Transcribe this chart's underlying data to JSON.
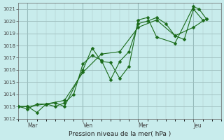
{
  "xlabel": "Pression niveau de la mer( hPa )",
  "bg_color": "#c8ecec",
  "line_color": "#1a6b1a",
  "grid_major_color": "#aacccc",
  "grid_minor_color": "#c8e8e8",
  "ylim": [
    1012,
    1021.5
  ],
  "xlim": [
    0,
    11.0
  ],
  "yticks": [
    1012,
    1013,
    1014,
    1015,
    1016,
    1017,
    1018,
    1019,
    1020,
    1021
  ],
  "xtick_labels": [
    "Mar",
    "Ven",
    "Mer",
    "Jeu"
  ],
  "xtick_positions": [
    0.5,
    3.5,
    6.5,
    9.5
  ],
  "vlines": [
    0.5,
    3.5,
    6.5,
    9.5
  ],
  "line1_x": [
    0.0,
    0.5,
    1.0,
    1.5,
    2.0,
    2.5,
    3.5,
    4.0,
    4.5,
    5.0,
    5.5,
    6.0,
    6.5,
    7.0,
    7.5,
    8.5,
    9.5,
    9.8,
    10.2
  ],
  "line1_y": [
    1013.0,
    1013.0,
    1012.5,
    1013.2,
    1013.3,
    1013.0,
    1016.0,
    1017.8,
    1016.7,
    1016.6,
    1015.3,
    1016.3,
    1020.1,
    1020.3,
    1018.7,
    1018.2,
    1021.2,
    1021.0,
    1020.2
  ],
  "line2_x": [
    0.0,
    0.5,
    1.0,
    1.5,
    2.0,
    2.5,
    3.0,
    3.5,
    4.0,
    4.5,
    5.0,
    5.5,
    6.0,
    6.5,
    7.0,
    7.5,
    8.0,
    8.5,
    9.0,
    9.5,
    10.0
  ],
  "line2_y": [
    1013.0,
    1012.8,
    1013.2,
    1013.2,
    1013.0,
    1013.3,
    1014.0,
    1016.5,
    1017.2,
    1016.8,
    1015.2,
    1016.7,
    1017.5,
    1019.8,
    1020.0,
    1020.3,
    1019.8,
    1018.8,
    1018.5,
    1021.0,
    1020.1
  ],
  "line3_x": [
    0.0,
    0.5,
    1.5,
    2.5,
    3.5,
    4.5,
    5.5,
    6.5,
    7.5,
    8.5,
    9.5,
    10.2
  ],
  "line3_y": [
    1013.0,
    1013.0,
    1013.2,
    1013.5,
    1015.8,
    1017.3,
    1017.5,
    1019.5,
    1020.1,
    1018.8,
    1019.5,
    1020.2
  ]
}
